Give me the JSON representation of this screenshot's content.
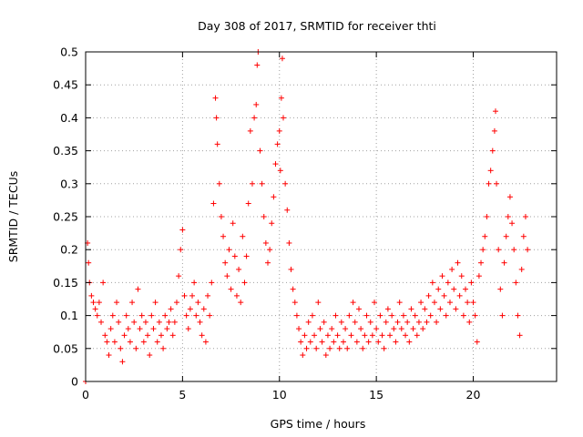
{
  "chart_data": {
    "type": "scatter",
    "title": "Day 308 of 2017, SRMTID for receiver thti",
    "xlabel": "GPS time / hours",
    "ylabel": "SRMTID / TECUs",
    "xlim": [
      0,
      24.3
    ],
    "ylim": [
      0,
      0.5
    ],
    "x_ticks": [
      "0",
      "5",
      "10",
      "15",
      "20"
    ],
    "y_ticks": [
      "0",
      "0.05",
      "0.1",
      "0.15",
      "0.2",
      "0.25",
      "0.3",
      "0.35",
      "0.4",
      "0.45",
      "0.5"
    ],
    "grid": true,
    "marker": "+",
    "series_color": "#ff0000",
    "series": [
      {
        "points": [
          [
            0.0,
            0.0
          ],
          [
            0.1,
            0.21
          ],
          [
            0.15,
            0.18
          ],
          [
            0.2,
            0.15
          ],
          [
            0.3,
            0.13
          ],
          [
            0.4,
            0.12
          ],
          [
            0.5,
            0.11
          ],
          [
            0.6,
            0.1
          ],
          [
            0.7,
            0.12
          ],
          [
            0.8,
            0.09
          ],
          [
            0.9,
            0.15
          ],
          [
            1.0,
            0.07
          ],
          [
            1.1,
            0.06
          ],
          [
            1.2,
            0.04
          ],
          [
            1.3,
            0.08
          ],
          [
            1.4,
            0.1
          ],
          [
            1.5,
            0.06
          ],
          [
            1.6,
            0.12
          ],
          [
            1.7,
            0.09
          ],
          [
            1.8,
            0.05
          ],
          [
            1.9,
            0.03
          ],
          [
            2.0,
            0.07
          ],
          [
            2.1,
            0.1
          ],
          [
            2.2,
            0.08
          ],
          [
            2.3,
            0.06
          ],
          [
            2.4,
            0.12
          ],
          [
            2.5,
            0.09
          ],
          [
            2.6,
            0.05
          ],
          [
            2.7,
            0.14
          ],
          [
            2.8,
            0.08
          ],
          [
            2.9,
            0.1
          ],
          [
            3.0,
            0.06
          ],
          [
            3.1,
            0.09
          ],
          [
            3.2,
            0.07
          ],
          [
            3.3,
            0.04
          ],
          [
            3.4,
            0.1
          ],
          [
            3.5,
            0.08
          ],
          [
            3.6,
            0.12
          ],
          [
            3.7,
            0.06
          ],
          [
            3.8,
            0.09
          ],
          [
            3.9,
            0.07
          ],
          [
            4.0,
            0.05
          ],
          [
            4.1,
            0.1
          ],
          [
            4.2,
            0.08
          ],
          [
            4.3,
            0.09
          ],
          [
            4.4,
            0.11
          ],
          [
            4.5,
            0.07
          ],
          [
            4.6,
            0.09
          ],
          [
            4.7,
            0.12
          ],
          [
            4.8,
            0.16
          ],
          [
            4.9,
            0.2
          ],
          [
            5.0,
            0.23
          ],
          [
            5.1,
            0.13
          ],
          [
            5.2,
            0.1
          ],
          [
            5.3,
            0.08
          ],
          [
            5.4,
            0.11
          ],
          [
            5.5,
            0.13
          ],
          [
            5.6,
            0.15
          ],
          [
            5.7,
            0.1
          ],
          [
            5.8,
            0.12
          ],
          [
            5.9,
            0.09
          ],
          [
            6.0,
            0.07
          ],
          [
            6.1,
            0.11
          ],
          [
            6.2,
            0.06
          ],
          [
            6.3,
            0.13
          ],
          [
            6.4,
            0.1
          ],
          [
            6.5,
            0.15
          ],
          [
            6.6,
            0.27
          ],
          [
            6.7,
            0.43
          ],
          [
            6.75,
            0.4
          ],
          [
            6.8,
            0.36
          ],
          [
            6.9,
            0.3
          ],
          [
            7.0,
            0.25
          ],
          [
            7.1,
            0.22
          ],
          [
            7.2,
            0.18
          ],
          [
            7.3,
            0.16
          ],
          [
            7.4,
            0.2
          ],
          [
            7.5,
            0.14
          ],
          [
            7.6,
            0.24
          ],
          [
            7.7,
            0.19
          ],
          [
            7.8,
            0.13
          ],
          [
            7.9,
            0.17
          ],
          [
            8.0,
            0.12
          ],
          [
            8.1,
            0.22
          ],
          [
            8.2,
            0.15
          ],
          [
            8.3,
            0.19
          ],
          [
            8.4,
            0.27
          ],
          [
            8.5,
            0.38
          ],
          [
            8.6,
            0.3
          ],
          [
            8.7,
            0.4
          ],
          [
            8.8,
            0.42
          ],
          [
            8.85,
            0.48
          ],
          [
            8.9,
            0.5
          ],
          [
            9.0,
            0.35
          ],
          [
            9.1,
            0.3
          ],
          [
            9.2,
            0.25
          ],
          [
            9.3,
            0.21
          ],
          [
            9.4,
            0.18
          ],
          [
            9.5,
            0.2
          ],
          [
            9.6,
            0.24
          ],
          [
            9.7,
            0.28
          ],
          [
            9.8,
            0.33
          ],
          [
            9.9,
            0.36
          ],
          [
            10.0,
            0.38
          ],
          [
            10.05,
            0.32
          ],
          [
            10.1,
            0.43
          ],
          [
            10.15,
            0.49
          ],
          [
            10.2,
            0.4
          ],
          [
            10.3,
            0.3
          ],
          [
            10.4,
            0.26
          ],
          [
            10.5,
            0.21
          ],
          [
            10.6,
            0.17
          ],
          [
            10.7,
            0.14
          ],
          [
            10.8,
            0.12
          ],
          [
            10.9,
            0.1
          ],
          [
            11.0,
            0.08
          ],
          [
            11.1,
            0.06
          ],
          [
            11.2,
            0.04
          ],
          [
            11.3,
            0.07
          ],
          [
            11.4,
            0.05
          ],
          [
            11.5,
            0.09
          ],
          [
            11.6,
            0.06
          ],
          [
            11.7,
            0.1
          ],
          [
            11.8,
            0.07
          ],
          [
            11.9,
            0.05
          ],
          [
            12.0,
            0.12
          ],
          [
            12.1,
            0.08
          ],
          [
            12.2,
            0.06
          ],
          [
            12.3,
            0.09
          ],
          [
            12.4,
            0.04
          ],
          [
            12.5,
            0.07
          ],
          [
            12.6,
            0.05
          ],
          [
            12.7,
            0.08
          ],
          [
            12.8,
            0.06
          ],
          [
            12.9,
            0.1
          ],
          [
            13.0,
            0.07
          ],
          [
            13.1,
            0.05
          ],
          [
            13.2,
            0.09
          ],
          [
            13.3,
            0.06
          ],
          [
            13.4,
            0.08
          ],
          [
            13.5,
            0.05
          ],
          [
            13.6,
            0.1
          ],
          [
            13.7,
            0.07
          ],
          [
            13.8,
            0.12
          ],
          [
            13.9,
            0.09
          ],
          [
            14.0,
            0.06
          ],
          [
            14.1,
            0.11
          ],
          [
            14.2,
            0.08
          ],
          [
            14.3,
            0.05
          ],
          [
            14.4,
            0.07
          ],
          [
            14.5,
            0.1
          ],
          [
            14.6,
            0.06
          ],
          [
            14.7,
            0.09
          ],
          [
            14.8,
            0.07
          ],
          [
            14.9,
            0.12
          ],
          [
            15.0,
            0.08
          ],
          [
            15.1,
            0.06
          ],
          [
            15.2,
            0.1
          ],
          [
            15.3,
            0.07
          ],
          [
            15.4,
            0.05
          ],
          [
            15.5,
            0.09
          ],
          [
            15.6,
            0.11
          ],
          [
            15.7,
            0.07
          ],
          [
            15.8,
            0.1
          ],
          [
            15.9,
            0.08
          ],
          [
            16.0,
            0.06
          ],
          [
            16.1,
            0.09
          ],
          [
            16.2,
            0.12
          ],
          [
            16.3,
            0.08
          ],
          [
            16.4,
            0.1
          ],
          [
            16.5,
            0.07
          ],
          [
            16.6,
            0.09
          ],
          [
            16.7,
            0.06
          ],
          [
            16.8,
            0.11
          ],
          [
            16.9,
            0.08
          ],
          [
            17.0,
            0.1
          ],
          [
            17.1,
            0.07
          ],
          [
            17.2,
            0.09
          ],
          [
            17.3,
            0.12
          ],
          [
            17.4,
            0.08
          ],
          [
            17.5,
            0.11
          ],
          [
            17.6,
            0.09
          ],
          [
            17.7,
            0.13
          ],
          [
            17.8,
            0.1
          ],
          [
            17.9,
            0.15
          ],
          [
            18.0,
            0.12
          ],
          [
            18.1,
            0.09
          ],
          [
            18.2,
            0.14
          ],
          [
            18.3,
            0.11
          ],
          [
            18.4,
            0.16
          ],
          [
            18.5,
            0.13
          ],
          [
            18.6,
            0.1
          ],
          [
            18.7,
            0.15
          ],
          [
            18.8,
            0.12
          ],
          [
            18.9,
            0.17
          ],
          [
            19.0,
            0.14
          ],
          [
            19.1,
            0.11
          ],
          [
            19.2,
            0.18
          ],
          [
            19.3,
            0.13
          ],
          [
            19.4,
            0.16
          ],
          [
            19.5,
            0.1
          ],
          [
            19.6,
            0.14
          ],
          [
            19.7,
            0.12
          ],
          [
            19.8,
            0.09
          ],
          [
            19.9,
            0.15
          ],
          [
            20.0,
            0.12
          ],
          [
            20.1,
            0.1
          ],
          [
            20.2,
            0.06
          ],
          [
            20.3,
            0.16
          ],
          [
            20.4,
            0.18
          ],
          [
            20.5,
            0.2
          ],
          [
            20.6,
            0.22
          ],
          [
            20.7,
            0.25
          ],
          [
            20.8,
            0.3
          ],
          [
            20.9,
            0.32
          ],
          [
            21.0,
            0.35
          ],
          [
            21.1,
            0.38
          ],
          [
            21.15,
            0.41
          ],
          [
            21.2,
            0.3
          ],
          [
            21.3,
            0.2
          ],
          [
            21.4,
            0.14
          ],
          [
            21.5,
            0.1
          ],
          [
            21.6,
            0.18
          ],
          [
            21.7,
            0.22
          ],
          [
            21.8,
            0.25
          ],
          [
            21.9,
            0.28
          ],
          [
            22.0,
            0.24
          ],
          [
            22.1,
            0.2
          ],
          [
            22.2,
            0.15
          ],
          [
            22.3,
            0.1
          ],
          [
            22.4,
            0.07
          ],
          [
            22.5,
            0.17
          ],
          [
            22.6,
            0.22
          ],
          [
            22.7,
            0.25
          ],
          [
            22.8,
            0.2
          ]
        ]
      }
    ]
  }
}
